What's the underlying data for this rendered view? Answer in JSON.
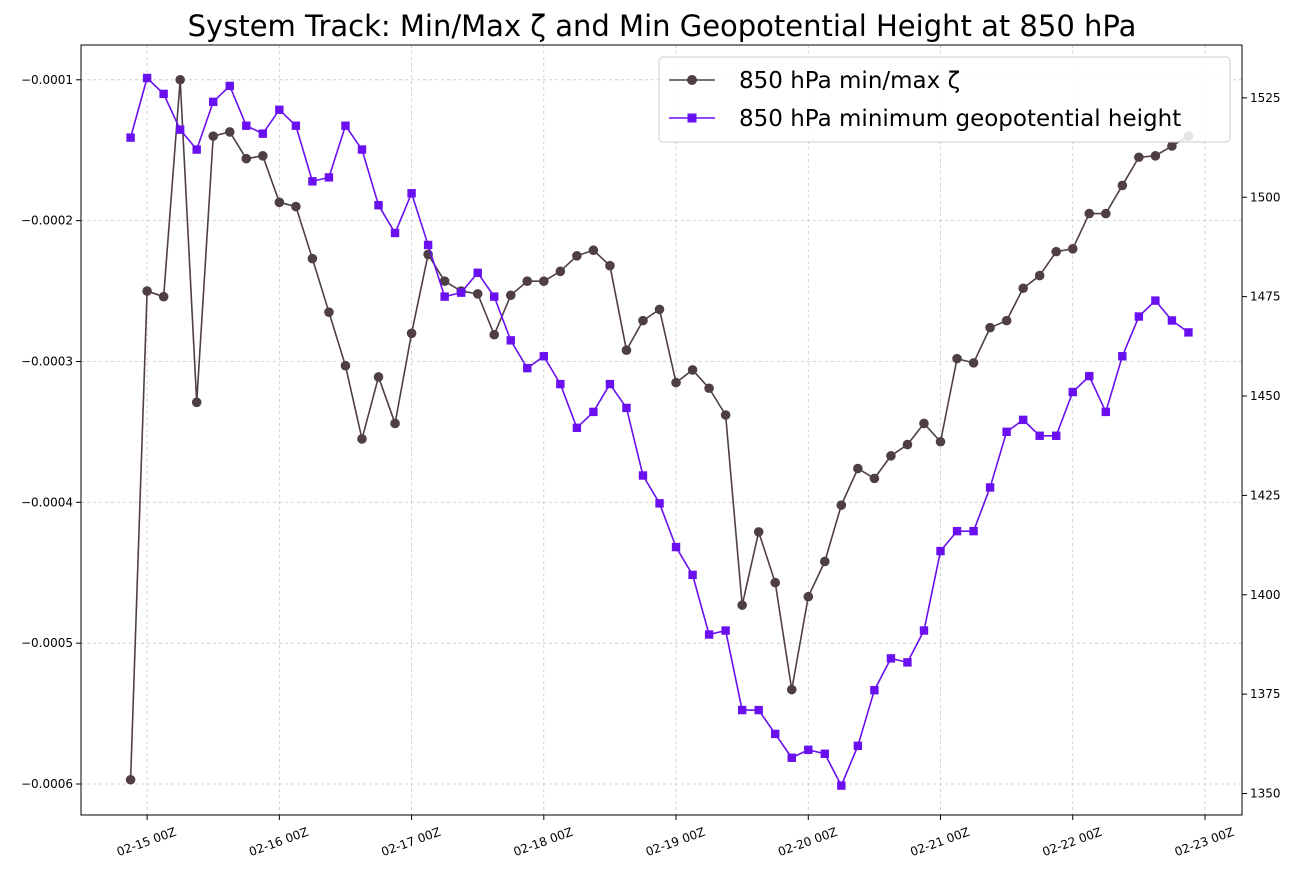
{
  "chart_data": {
    "type": "line",
    "title": "System Track: Min/Max ζ and Min Geopotential Height at 850 hPa",
    "xlabel": "",
    "ylabel": "",
    "y2label": "",
    "x_unit": "days since 02-15 00Z",
    "x_ticks": [
      {
        "value": 0,
        "label": "02-15 00Z"
      },
      {
        "value": 1,
        "label": "02-16 00Z"
      },
      {
        "value": 2,
        "label": "02-17 00Z"
      },
      {
        "value": 3,
        "label": "02-18 00Z"
      },
      {
        "value": 4,
        "label": "02-19 00Z"
      },
      {
        "value": 5,
        "label": "02-20 00Z"
      },
      {
        "value": 6,
        "label": "02-21 00Z"
      },
      {
        "value": 7,
        "label": "02-22 00Z"
      },
      {
        "value": 8,
        "label": "02-23 00Z"
      }
    ],
    "xlim": [
      -0.5,
      8.28
    ],
    "ylim_left": [
      -0.000622,
      -7.53e-05
    ],
    "ylim_right": [
      1344.6,
      1538.3
    ],
    "y_left_ticks": [
      {
        "value": -0.0001,
        "label": "−0.0001"
      },
      {
        "value": -0.0002,
        "label": "−0.0002"
      },
      {
        "value": -0.0003,
        "label": "−0.0003"
      },
      {
        "value": -0.0004,
        "label": "−0.0004"
      },
      {
        "value": -0.0005,
        "label": "−0.0005"
      },
      {
        "value": -0.0006,
        "label": "−0.0006"
      }
    ],
    "y_right_ticks": [
      {
        "value": 1350,
        "label": "1350"
      },
      {
        "value": 1375,
        "label": "1375"
      },
      {
        "value": 1400,
        "label": "1400"
      },
      {
        "value": 1425,
        "label": "1425"
      },
      {
        "value": 1450,
        "label": "1450"
      },
      {
        "value": 1475,
        "label": "1475"
      },
      {
        "value": 1500,
        "label": "1500"
      },
      {
        "value": 1525,
        "label": "1525"
      }
    ],
    "grid": true,
    "legend": "top-right",
    "series": [
      {
        "name": "850 hPa min/max ζ",
        "axis": "left",
        "color": "#4f3f44",
        "marker": "circle",
        "x": [
          -0.125,
          0,
          0.125,
          0.25,
          0.375,
          0.5,
          0.625,
          0.75,
          0.875,
          1,
          1.125,
          1.25,
          1.375,
          1.5,
          1.625,
          1.75,
          1.875,
          2,
          2.125,
          2.25,
          2.375,
          2.5,
          2.625,
          2.75,
          2.875,
          3,
          3.125,
          3.25,
          3.375,
          3.5,
          3.625,
          3.75,
          3.875,
          4,
          4.125,
          4.25,
          4.375,
          4.5,
          4.625,
          4.75,
          4.875,
          5,
          5.125,
          5.25,
          5.375,
          5.5,
          5.625,
          5.75,
          5.875,
          6,
          6.125,
          6.25,
          6.375,
          6.5,
          6.625,
          6.75,
          6.875,
          7,
          7.125,
          7.25,
          7.375,
          7.5,
          7.625,
          7.75,
          7.875
        ],
        "values": [
          -0.000597,
          -0.00025,
          -0.000254,
          -0.0001,
          -0.000329,
          -0.00014,
          -0.000137,
          -0.000156,
          -0.000154,
          -0.000187,
          -0.00019,
          -0.000227,
          -0.000265,
          -0.000303,
          -0.000355,
          -0.000311,
          -0.000344,
          -0.00028,
          -0.000224,
          -0.000243,
          -0.00025,
          -0.000252,
          -0.000281,
          -0.000253,
          -0.000243,
          -0.000243,
          -0.000236,
          -0.000225,
          -0.000221,
          -0.000232,
          -0.000292,
          -0.000271,
          -0.000263,
          -0.000315,
          -0.000306,
          -0.000319,
          -0.000338,
          -0.000473,
          -0.000421,
          -0.000457,
          -0.000533,
          -0.000467,
          -0.000442,
          -0.000402,
          -0.000376,
          -0.000383,
          -0.000367,
          -0.000359,
          -0.000344,
          -0.000357,
          -0.000298,
          -0.000301,
          -0.000276,
          -0.000271,
          -0.000248,
          -0.000239,
          -0.000222,
          -0.00022,
          -0.000195,
          -0.000195,
          -0.000175,
          -0.000155,
          -0.000154,
          -0.000147,
          -0.00014
        ]
      },
      {
        "name": "850 hPa minimum geopotential height",
        "axis": "right",
        "color": "#6a0ff0",
        "marker": "square",
        "x": [
          -0.125,
          0,
          0.125,
          0.25,
          0.375,
          0.5,
          0.625,
          0.75,
          0.875,
          1,
          1.125,
          1.25,
          1.375,
          1.5,
          1.625,
          1.75,
          1.875,
          2,
          2.125,
          2.25,
          2.375,
          2.5,
          2.625,
          2.75,
          2.875,
          3,
          3.125,
          3.25,
          3.375,
          3.5,
          3.625,
          3.75,
          3.875,
          4,
          4.125,
          4.25,
          4.375,
          4.5,
          4.625,
          4.75,
          4.875,
          5,
          5.125,
          5.25,
          5.375,
          5.5,
          5.625,
          5.75,
          5.875,
          6,
          6.125,
          6.25,
          6.375,
          6.5,
          6.625,
          6.75,
          6.875,
          7,
          7.125,
          7.25,
          7.375,
          7.5,
          7.625,
          7.75,
          7.875
        ],
        "values": [
          1515,
          1530,
          1526,
          1517,
          1512,
          1524,
          1528,
          1518,
          1516,
          1522,
          1518,
          1504,
          1505,
          1518,
          1512,
          1498,
          1491,
          1501,
          1488,
          1475,
          1476,
          1481,
          1475,
          1464,
          1457,
          1460,
          1453,
          1442,
          1446,
          1453,
          1447,
          1430,
          1423,
          1412,
          1405,
          1390,
          1391,
          1371,
          1371,
          1365,
          1359,
          1361,
          1360,
          1352,
          1362,
          1376,
          1384,
          1383,
          1391,
          1411,
          1416,
          1416,
          1427,
          1441,
          1444,
          1440,
          1440,
          1451,
          1455,
          1446,
          1460,
          1470,
          1474,
          1469,
          1466
        ]
      }
    ]
  }
}
